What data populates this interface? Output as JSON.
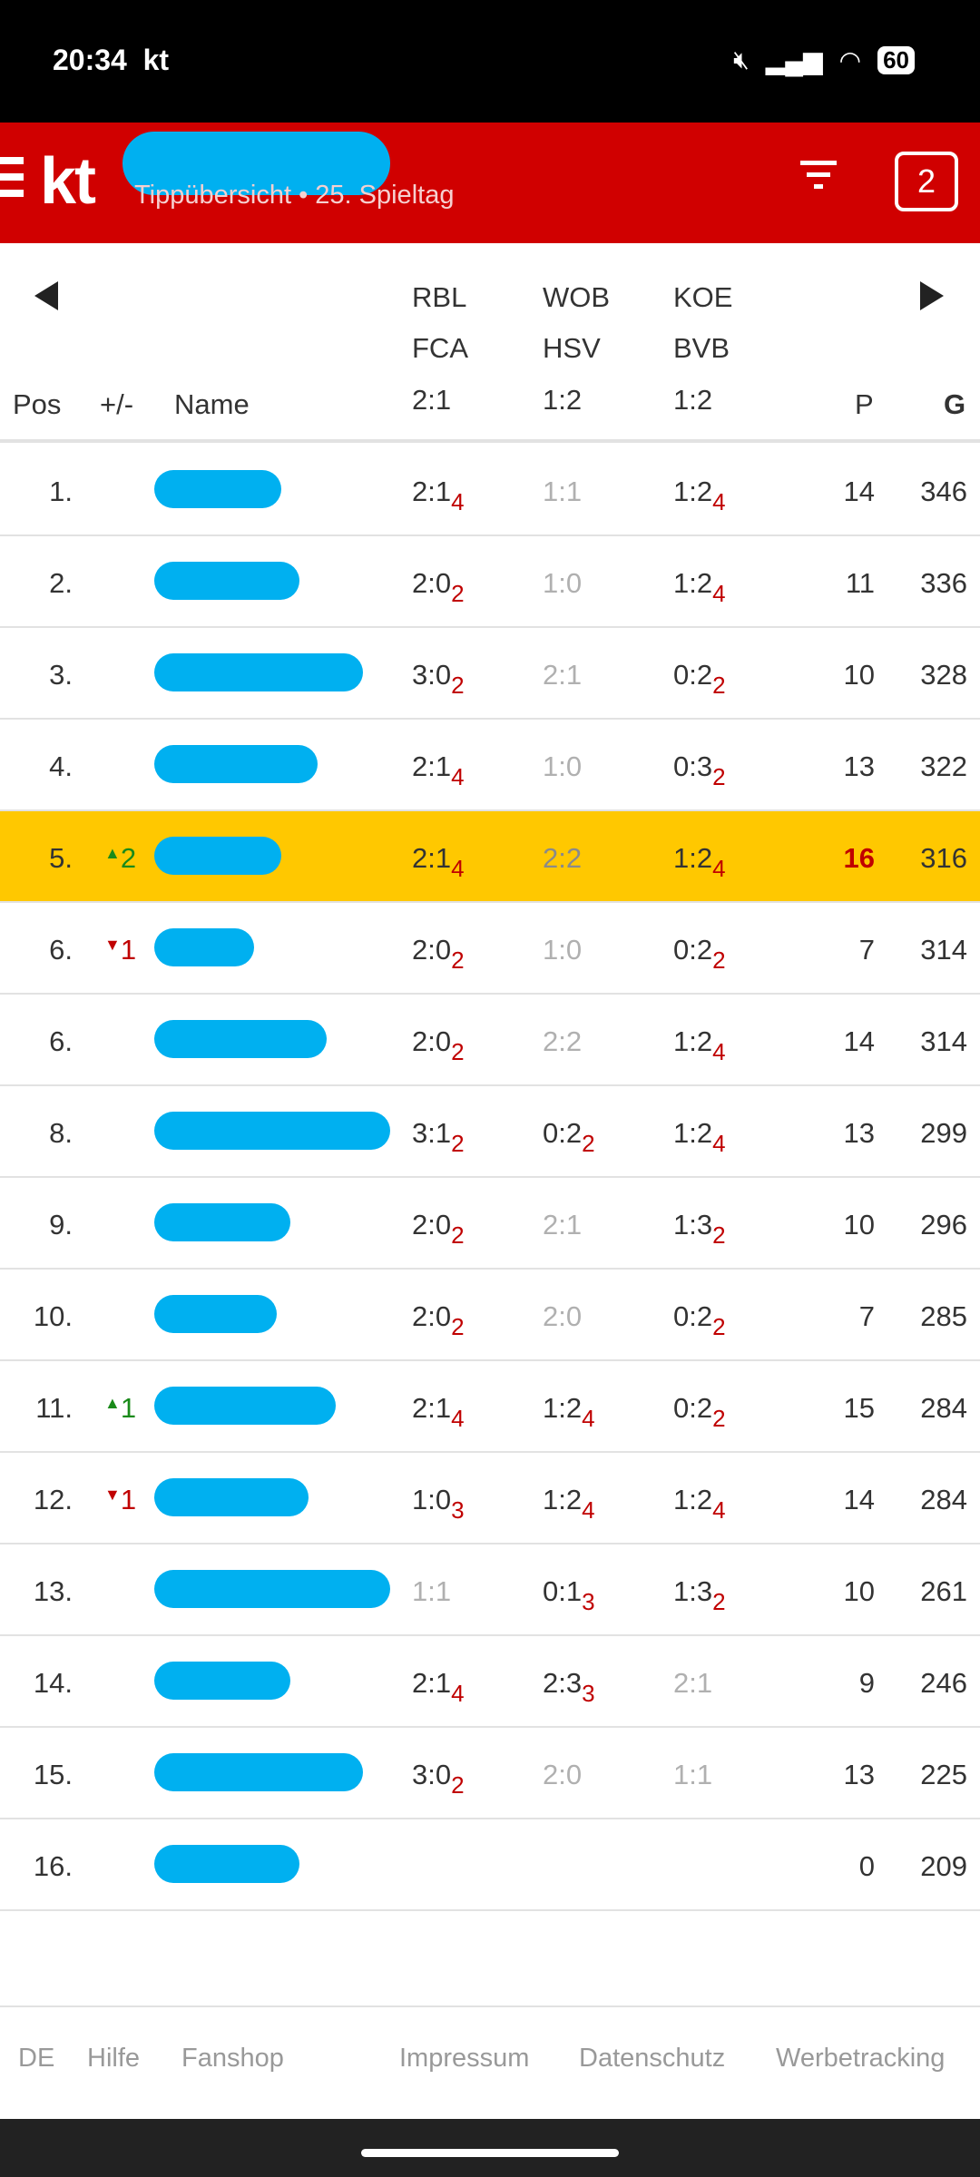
{
  "status_bar": {
    "time": "20:34",
    "app": "kt",
    "battery": "60"
  },
  "app_bar": {
    "logo": "kt",
    "subtitle": "Tippübersicht • 25. Spieltag",
    "badge_count": "2",
    "color": "#d00000"
  },
  "table": {
    "headers": {
      "pos": "Pos",
      "change": "+/-",
      "name": "Name",
      "points": "P",
      "total": "G"
    },
    "matches": [
      {
        "home": "RBL",
        "away": "FCA",
        "result": "2:1"
      },
      {
        "home": "WOB",
        "away": "HSV",
        "result": "1:2"
      },
      {
        "home": "KOE",
        "away": "BVB",
        "result": "1:2"
      }
    ],
    "rows": [
      {
        "pos": "1.",
        "change": "",
        "dir": "",
        "tips": [
          {
            "s": "2:1",
            "p": "4"
          },
          {
            "s": "1:1",
            "p": ""
          },
          {
            "s": "1:2",
            "p": "4"
          }
        ],
        "points": "14",
        "total": "346"
      },
      {
        "pos": "2.",
        "change": "",
        "dir": "",
        "tips": [
          {
            "s": "2:0",
            "p": "2"
          },
          {
            "s": "1:0",
            "p": ""
          },
          {
            "s": "1:2",
            "p": "4"
          }
        ],
        "points": "11",
        "total": "336"
      },
      {
        "pos": "3.",
        "change": "",
        "dir": "",
        "tips": [
          {
            "s": "3:0",
            "p": "2"
          },
          {
            "s": "2:1",
            "p": ""
          },
          {
            "s": "0:2",
            "p": "2"
          }
        ],
        "points": "10",
        "total": "328"
      },
      {
        "pos": "4.",
        "change": "",
        "dir": "",
        "tips": [
          {
            "s": "2:1",
            "p": "4"
          },
          {
            "s": "1:0",
            "p": ""
          },
          {
            "s": "0:3",
            "p": "2"
          }
        ],
        "points": "13",
        "total": "322"
      },
      {
        "pos": "5.",
        "change": "2",
        "dir": "up",
        "highlight": true,
        "best": true,
        "tips": [
          {
            "s": "2:1",
            "p": "4"
          },
          {
            "s": "2:2",
            "p": ""
          },
          {
            "s": "1:2",
            "p": "4"
          }
        ],
        "points": "16",
        "total": "316"
      },
      {
        "pos": "6.",
        "change": "1",
        "dir": "down",
        "tips": [
          {
            "s": "2:0",
            "p": "2"
          },
          {
            "s": "1:0",
            "p": ""
          },
          {
            "s": "0:2",
            "p": "2"
          }
        ],
        "points": "7",
        "total": "314"
      },
      {
        "pos": "6.",
        "change": "",
        "dir": "",
        "tips": [
          {
            "s": "2:0",
            "p": "2"
          },
          {
            "s": "2:2",
            "p": ""
          },
          {
            "s": "1:2",
            "p": "4"
          }
        ],
        "points": "14",
        "total": "314"
      },
      {
        "pos": "8.",
        "change": "",
        "dir": "",
        "tips": [
          {
            "s": "3:1",
            "p": "2"
          },
          {
            "s": "0:2",
            "p": "2"
          },
          {
            "s": "1:2",
            "p": "4"
          }
        ],
        "points": "13",
        "total": "299"
      },
      {
        "pos": "9.",
        "change": "",
        "dir": "",
        "tips": [
          {
            "s": "2:0",
            "p": "2"
          },
          {
            "s": "2:1",
            "p": ""
          },
          {
            "s": "1:3",
            "p": "2"
          }
        ],
        "points": "10",
        "total": "296"
      },
      {
        "pos": "10.",
        "change": "",
        "dir": "",
        "tips": [
          {
            "s": "2:0",
            "p": "2"
          },
          {
            "s": "2:0",
            "p": ""
          },
          {
            "s": "0:2",
            "p": "2"
          }
        ],
        "points": "7",
        "total": "285"
      },
      {
        "pos": "11.",
        "change": "1",
        "dir": "up",
        "tips": [
          {
            "s": "2:1",
            "p": "4"
          },
          {
            "s": "1:2",
            "p": "4"
          },
          {
            "s": "0:2",
            "p": "2"
          }
        ],
        "points": "15",
        "total": "284"
      },
      {
        "pos": "12.",
        "change": "1",
        "dir": "down",
        "tips": [
          {
            "s": "1:0",
            "p": "3"
          },
          {
            "s": "1:2",
            "p": "4"
          },
          {
            "s": "1:2",
            "p": "4"
          }
        ],
        "points": "14",
        "total": "284"
      },
      {
        "pos": "13.",
        "change": "",
        "dir": "",
        "tips": [
          {
            "s": "1:1",
            "p": ""
          },
          {
            "s": "0:1",
            "p": "3"
          },
          {
            "s": "1:3",
            "p": "2"
          }
        ],
        "points": "10",
        "total": "261"
      },
      {
        "pos": "14.",
        "change": "",
        "dir": "",
        "tips": [
          {
            "s": "2:1",
            "p": "4"
          },
          {
            "s": "2:3",
            "p": "3"
          },
          {
            "s": "2:1",
            "p": ""
          }
        ],
        "points": "9",
        "total": "246"
      },
      {
        "pos": "15.",
        "change": "",
        "dir": "",
        "tips": [
          {
            "s": "3:0",
            "p": "2"
          },
          {
            "s": "2:0",
            "p": ""
          },
          {
            "s": "1:1",
            "p": ""
          }
        ],
        "points": "13",
        "total": "225"
      },
      {
        "pos": "16.",
        "change": "",
        "dir": "",
        "tips": [],
        "points": "0",
        "total": "209"
      }
    ]
  },
  "footer": {
    "links": [
      "DE",
      "Hilfe",
      "Fanshop",
      "Impressum",
      "Datenschutz",
      "Werbetracking"
    ]
  }
}
